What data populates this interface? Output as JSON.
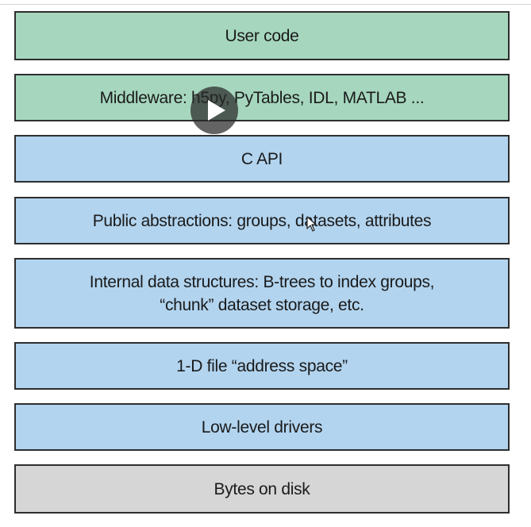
{
  "layers": [
    {
      "label": "User code",
      "color": "#a6d7be"
    },
    {
      "label": "Middleware: h5py, PyTables, IDL, MATLAB ...",
      "color": "#a6d7be"
    },
    {
      "label": "C API",
      "color": "#b2d4ef"
    },
    {
      "label": "Public abstractions: groups, datasets, attributes",
      "color": "#b2d4ef"
    },
    {
      "label_line1": "Internal data structures: B-trees to index groups,",
      "label_line2": "“chunk” dataset storage, etc.",
      "color": "#b2d4ef"
    },
    {
      "label": "1-D file “address space”",
      "color": "#b2d4ef"
    },
    {
      "label": "Low-level drivers",
      "color": "#b2d4ef"
    },
    {
      "label": "Bytes on disk",
      "color": "#d6d6d6"
    }
  ],
  "video_overlay": {
    "play_icon": "play-icon",
    "cursor_icon": "mouse-pointer-icon"
  }
}
